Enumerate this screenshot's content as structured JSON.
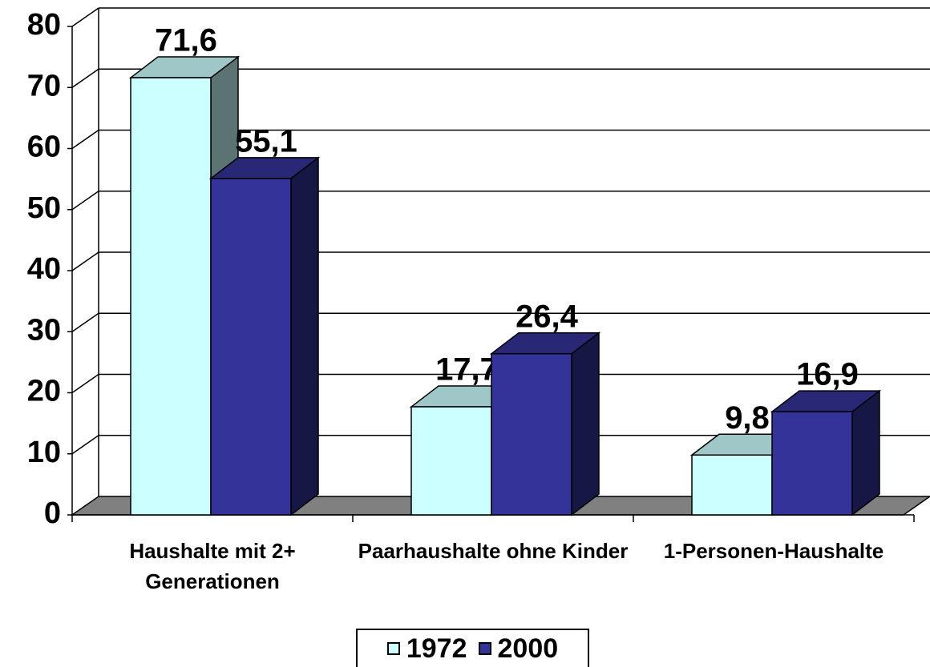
{
  "chart_data": {
    "type": "bar3d",
    "categories": [
      "Haushalte mit 2+ Generationen",
      "Paarhaushalte ohne Kinder",
      "1-Personen-Haushalte"
    ],
    "series": [
      {
        "name": "1972",
        "color": "#ccffff",
        "values": [
          71.6,
          17.7,
          9.8
        ],
        "value_labels": [
          "71,6",
          "17,7",
          "9,8"
        ]
      },
      {
        "name": "2000",
        "color": "#333399",
        "values": [
          55.1,
          26.4,
          16.9
        ],
        "value_labels": [
          "55,1",
          "26,4",
          "16,9"
        ]
      }
    ],
    "ylim": [
      0,
      80
    ],
    "yticks": [
      0,
      10,
      20,
      30,
      40,
      50,
      60,
      70,
      80
    ],
    "grid": true
  }
}
